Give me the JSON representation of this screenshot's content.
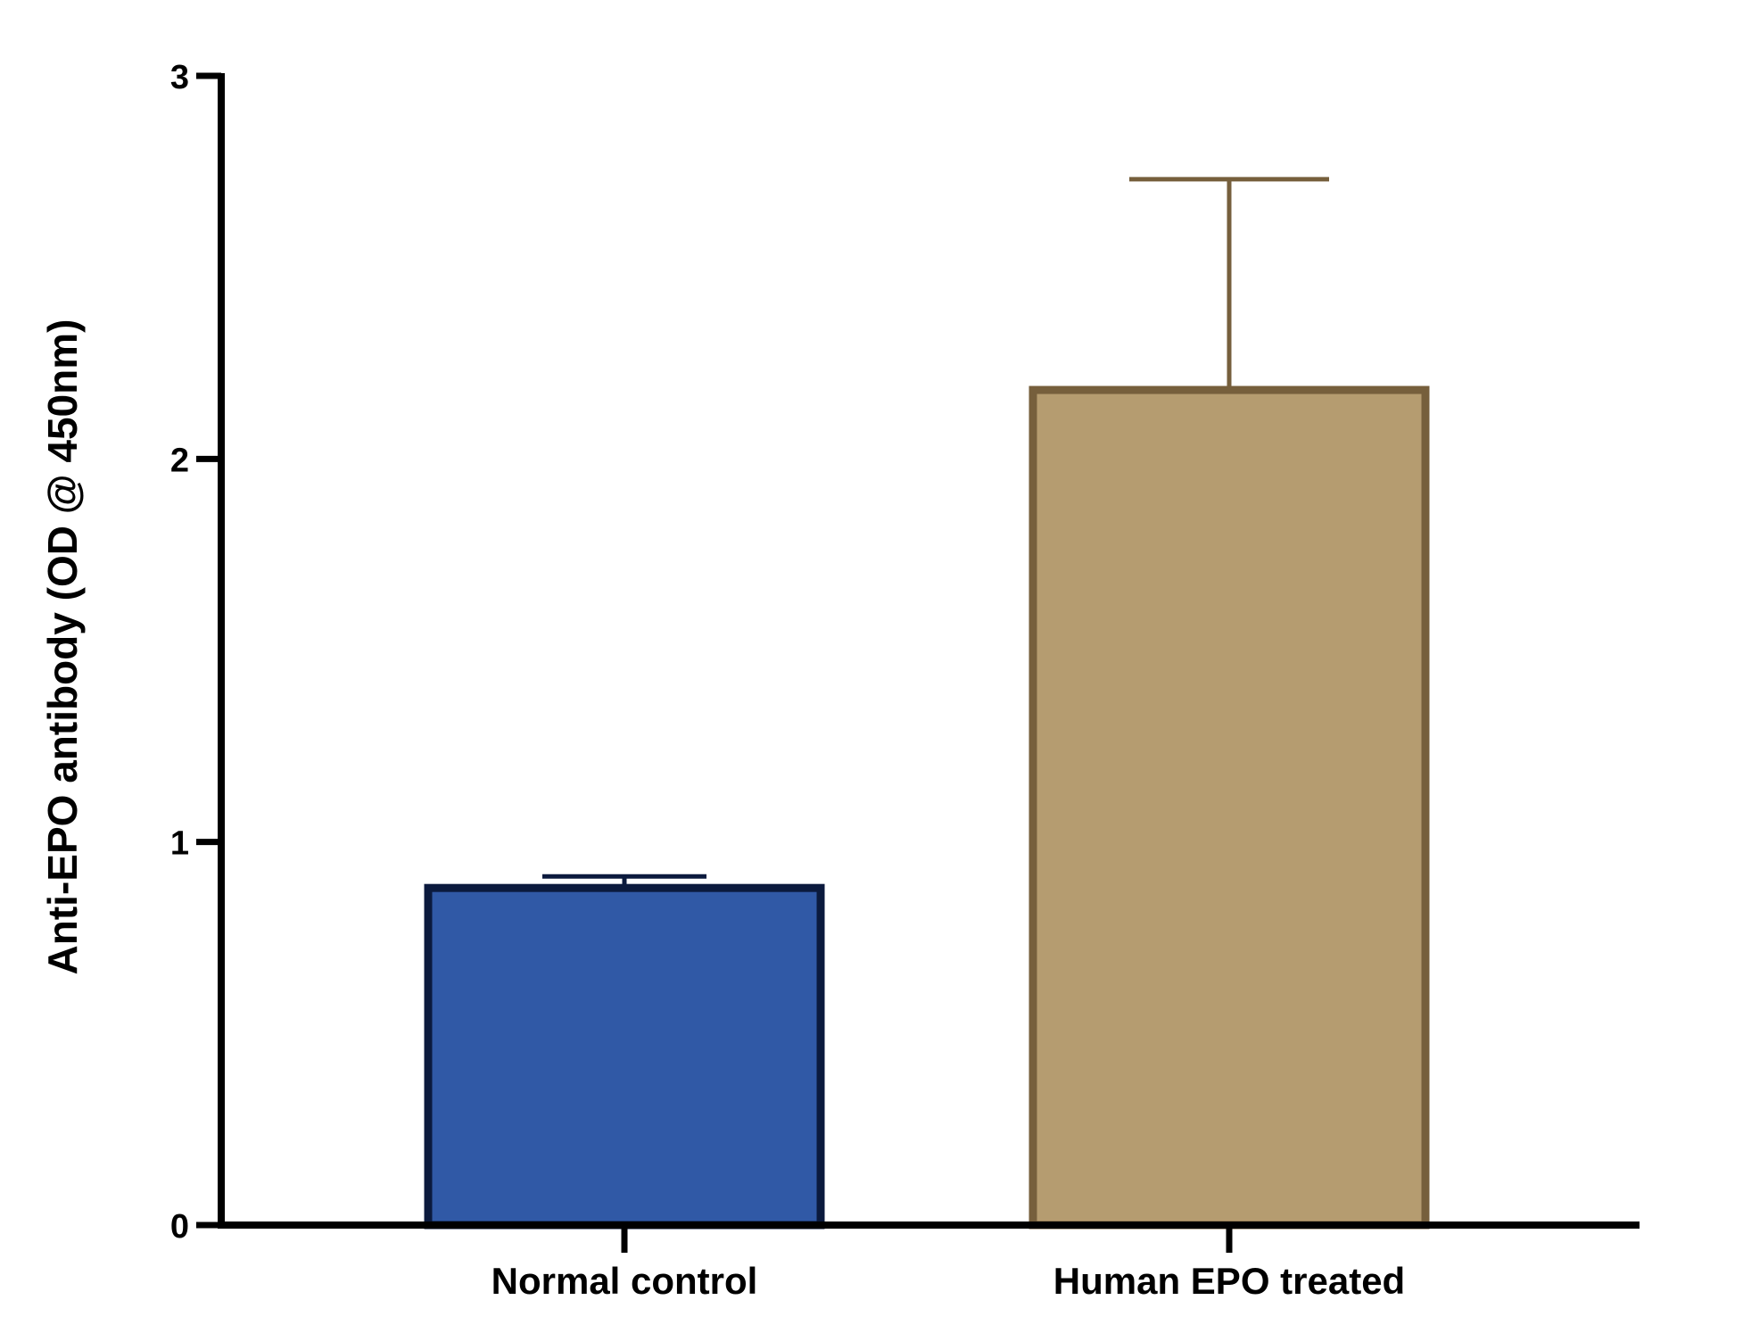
{
  "chart_data": {
    "type": "bar",
    "title": "",
    "xlabel": "",
    "ylabel": "Anti-EPO antibody (OD @ 450nm)",
    "ylim": [
      0,
      3
    ],
    "yticks": [
      "0",
      "1",
      "2",
      "3"
    ],
    "grid": false,
    "legend": "none",
    "categories": [
      "Normal control",
      "Human EPO treated"
    ],
    "values": [
      0.88,
      2.18
    ],
    "error_upper": [
      0.03,
      0.55
    ],
    "colors": {
      "fill": [
        "#3059a6",
        "#b59c70"
      ],
      "stroke": [
        "#0b1a3d",
        "#765f3c"
      ]
    }
  }
}
